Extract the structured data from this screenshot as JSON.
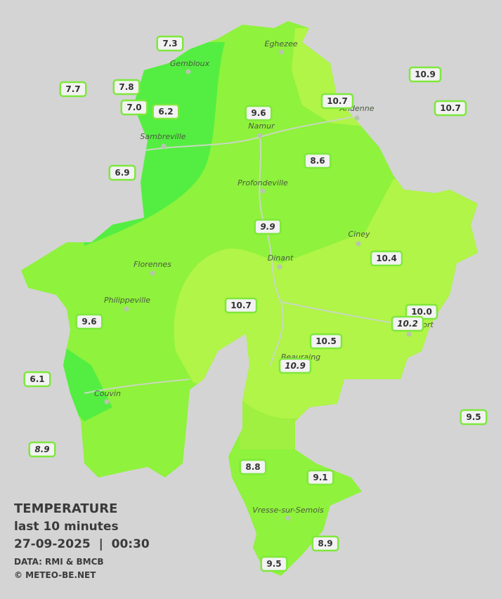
{
  "towns": [
    "Eghezee",
    "Gembloux",
    "Andenne",
    "Namur",
    "Sambreville",
    "Profondeville",
    "Ciney",
    "Dinant",
    "Florennes",
    "Philippeville",
    "Rochefort",
    "Beauraing",
    "Couvin",
    "Vresse-sur-Semois"
  ],
  "stations": [
    "7.3",
    "7.7",
    "7.8",
    "7.0",
    "6.2",
    "9.6",
    "10.7",
    "10.9",
    "10.7",
    "6.9",
    "8.6",
    "9.9",
    "10.4",
    "10.7",
    "9.6",
    "10.0",
    "10.2",
    "10.5",
    "10.9",
    "6.1",
    "9.5",
    "8.9",
    "8.8",
    "9.1",
    "8.9",
    "9.5"
  ],
  "legend": {
    "title": "TEMPERATURE",
    "subtitle": "last 10 minutes",
    "datetime": "27-09-2025  |  00:30",
    "source": "DATA: RMI & BMCB",
    "credit": "© METEO-BE.NET"
  }
}
